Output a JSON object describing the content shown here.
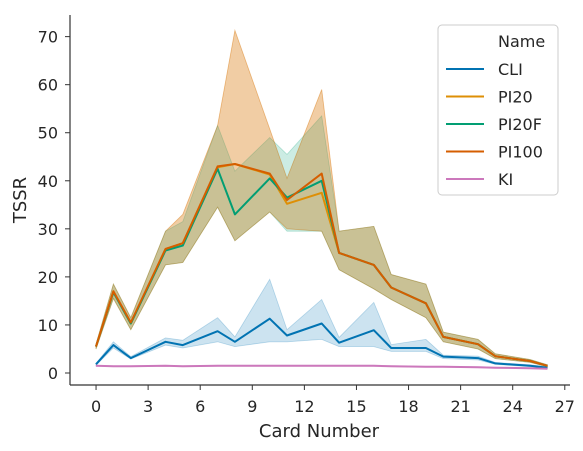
{
  "chart_data": {
    "type": "line",
    "xlabel": "Card Number",
    "ylabel": "TSSR",
    "xlim": [
      -1.5,
      27.3
    ],
    "ylim": [
      -2.5,
      74.5
    ],
    "xticks": [
      0,
      3,
      6,
      9,
      12,
      15,
      18,
      21,
      24,
      27
    ],
    "yticks": [
      0,
      10,
      20,
      30,
      40,
      50,
      60,
      70
    ],
    "legend": {
      "title": "Name",
      "position": "top-right"
    },
    "x": [
      0,
      1,
      2,
      4,
      5,
      7,
      8,
      10,
      11,
      13,
      14,
      16,
      17,
      19,
      20,
      22,
      23,
      25,
      26
    ],
    "series": [
      {
        "name": "CLI",
        "color": "#0173b2",
        "values": [
          1.8,
          5.8,
          3.1,
          6.5,
          5.8,
          8.7,
          6.5,
          11.3,
          7.8,
          10.3,
          6.3,
          8.9,
          5.2,
          5.2,
          3.4,
          3.1,
          2.0,
          1.5,
          1.1
        ],
        "lower": [
          1.6,
          5.2,
          2.9,
          5.8,
          5.2,
          6.5,
          5.5,
          6.5,
          6.5,
          7.0,
          5.5,
          5.5,
          4.5,
          4.5,
          3.0,
          2.7,
          1.8,
          1.3,
          1.0
        ],
        "upper": [
          2.0,
          6.5,
          3.4,
          7.3,
          6.8,
          11.5,
          7.5,
          19.5,
          9.0,
          15.3,
          7.4,
          14.7,
          5.9,
          7.0,
          3.7,
          3.5,
          2.2,
          1.7,
          1.3
        ]
      },
      {
        "name": "PI20",
        "color": "#de8f05",
        "values": [
          5.5,
          17.0,
          10.3,
          25.8,
          27.0,
          42.8,
          43.5,
          41.3,
          35.2,
          37.5,
          25.0,
          22.5,
          17.8,
          14.5,
          7.5,
          6.0,
          3.5,
          2.5,
          1.5
        ],
        "lower": [
          5.0,
          15.5,
          9.0,
          22.5,
          23.0,
          34.5,
          27.5,
          33.5,
          30.0,
          29.5,
          21.5,
          17.5,
          15.3,
          11.5,
          6.5,
          5.0,
          3.0,
          2.2,
          1.3
        ],
        "upper": [
          6.0,
          18.5,
          11.5,
          29.5,
          33.0,
          51.5,
          71.3,
          50.8,
          40.5,
          59.0,
          29.5,
          30.5,
          20.5,
          18.5,
          8.5,
          7.0,
          4.0,
          2.8,
          1.7
        ]
      },
      {
        "name": "PI20F",
        "color": "#029e73",
        "values": [
          5.5,
          16.8,
          10.3,
          25.5,
          26.5,
          42.5,
          33.0,
          40.5,
          36.5,
          40.0,
          25.0,
          22.5,
          17.8,
          14.5,
          7.5,
          6.0,
          3.5,
          2.5,
          1.5
        ],
        "lower": [
          5.0,
          15.5,
          9.0,
          22.5,
          23.0,
          34.5,
          27.5,
          33.5,
          29.5,
          29.5,
          21.5,
          17.5,
          15.3,
          11.5,
          6.5,
          5.0,
          3.0,
          2.2,
          1.3
        ],
        "upper": [
          6.0,
          18.5,
          11.5,
          29.5,
          31.5,
          51.5,
          42.0,
          49.0,
          45.5,
          53.5,
          29.5,
          30.5,
          20.5,
          18.5,
          8.5,
          7.0,
          4.0,
          2.8,
          1.7
        ]
      },
      {
        "name": "PI100",
        "color": "#d55e00",
        "values": [
          5.5,
          17.0,
          10.5,
          25.8,
          27.0,
          43.0,
          43.5,
          41.5,
          36.0,
          41.5,
          25.0,
          22.5,
          17.8,
          14.5,
          7.5,
          6.0,
          3.5,
          2.5,
          1.5
        ],
        "lower": [
          5.0,
          15.5,
          9.0,
          22.5,
          23.0,
          34.5,
          27.5,
          33.5,
          30.0,
          29.5,
          21.5,
          17.5,
          15.3,
          11.5,
          6.5,
          5.0,
          3.0,
          2.2,
          1.3
        ],
        "upper": [
          6.0,
          18.5,
          11.5,
          29.5,
          33.0,
          51.5,
          71.3,
          50.8,
          40.5,
          59.0,
          29.5,
          30.5,
          20.5,
          18.5,
          8.5,
          7.0,
          4.0,
          2.8,
          1.7
        ]
      },
      {
        "name": "KI",
        "color": "#cc78bc",
        "values": [
          1.5,
          1.4,
          1.4,
          1.5,
          1.4,
          1.5,
          1.5,
          1.5,
          1.5,
          1.5,
          1.5,
          1.5,
          1.4,
          1.3,
          1.3,
          1.2,
          1.1,
          1.0,
          0.9
        ],
        "lower": [
          1.4,
          1.3,
          1.3,
          1.4,
          1.3,
          1.4,
          1.4,
          1.4,
          1.4,
          1.4,
          1.4,
          1.4,
          1.3,
          1.2,
          1.2,
          1.1,
          1.0,
          0.9,
          0.8
        ],
        "upper": [
          1.6,
          1.5,
          1.5,
          1.6,
          1.5,
          1.6,
          1.6,
          1.6,
          1.6,
          1.6,
          1.6,
          1.6,
          1.5,
          1.4,
          1.4,
          1.3,
          1.2,
          1.1,
          1.0
        ]
      }
    ]
  }
}
